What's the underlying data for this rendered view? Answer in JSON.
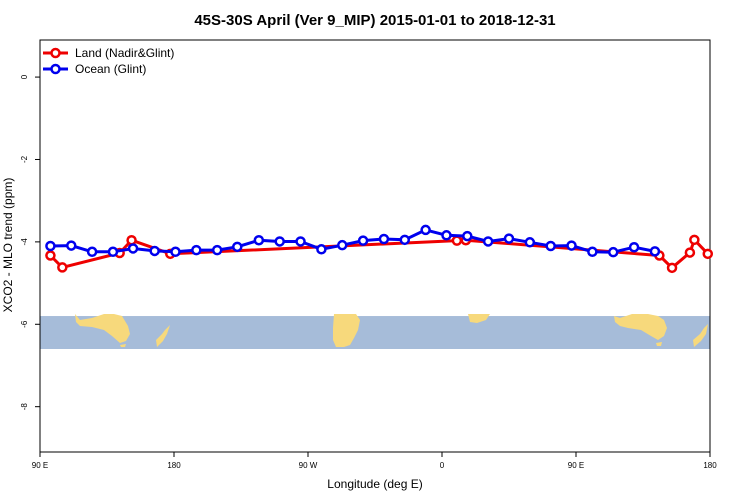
{
  "chart_data": {
    "type": "line",
    "title": "45S-30S April (Ver 9_MIP)   2015-01-01 to 2018-12-31",
    "xlabel": "Longitude (deg E)",
    "ylabel": "XCO2 - MLO trend (ppm)",
    "xlim": [
      90,
      540
    ],
    "ylim": [
      -9.1,
      0.9
    ],
    "x_ticks": [
      {
        "value": 90,
        "label": "90 E"
      },
      {
        "value": 180,
        "label": "180"
      },
      {
        "value": 270,
        "label": "90 W"
      },
      {
        "value": 360,
        "label": "0"
      },
      {
        "value": 450,
        "label": "90 E"
      },
      {
        "value": 540,
        "label": "180"
      }
    ],
    "y_ticks": [
      {
        "value": 0,
        "label": "0"
      },
      {
        "value": -2,
        "label": "-2"
      },
      {
        "value": -4,
        "label": "-4"
      },
      {
        "value": -6,
        "label": "-6"
      },
      {
        "value": -8,
        "label": "-8"
      }
    ],
    "grid": false,
    "legend": "top-left",
    "map_strip": {
      "ymin": -6.6,
      "ymax": -5.8,
      "ocean_color": "#a6bcd9",
      "land_color": "#f7d97c"
    },
    "series": [
      {
        "name": "Land (Nadir&Glint)",
        "color": "#ee0000",
        "points": [
          [
            97,
            -4.33
          ],
          [
            105,
            -4.62
          ],
          [
            143.5,
            -4.27
          ],
          [
            151.5,
            -3.96
          ],
          [
            177.5,
            -4.29
          ],
          [
            370,
            -3.97
          ],
          [
            376,
            -3.96
          ],
          [
            506,
            -4.33
          ],
          [
            514.5,
            -4.63
          ],
          [
            526.5,
            -4.26
          ],
          [
            529.5,
            -3.95
          ],
          [
            538.5,
            -4.29
          ]
        ]
      },
      {
        "name": "Ocean (Glint)",
        "color": "#0000ee",
        "points": [
          [
            97,
            -4.1
          ],
          [
            111,
            -4.09
          ],
          [
            125,
            -4.24
          ],
          [
            139,
            -4.24
          ],
          [
            152.5,
            -4.16
          ],
          [
            167,
            -4.22
          ],
          [
            181,
            -4.24
          ],
          [
            195,
            -4.2
          ],
          [
            209,
            -4.2
          ],
          [
            222.5,
            -4.12
          ],
          [
            237,
            -3.96
          ],
          [
            251,
            -3.99
          ],
          [
            265,
            -3.99
          ],
          [
            279,
            -4.18
          ],
          [
            293,
            -4.08
          ],
          [
            307,
            -3.97
          ],
          [
            321,
            -3.93
          ],
          [
            335,
            -3.95
          ],
          [
            349,
            -3.71
          ],
          [
            363,
            -3.84
          ],
          [
            377,
            -3.86
          ],
          [
            391,
            -3.99
          ],
          [
            405,
            -3.92
          ],
          [
            419,
            -4.01
          ],
          [
            433,
            -4.1
          ],
          [
            447,
            -4.09
          ],
          [
            461,
            -4.24
          ],
          [
            475,
            -4.25
          ],
          [
            489,
            -4.13
          ],
          [
            503,
            -4.23
          ]
        ]
      }
    ]
  }
}
